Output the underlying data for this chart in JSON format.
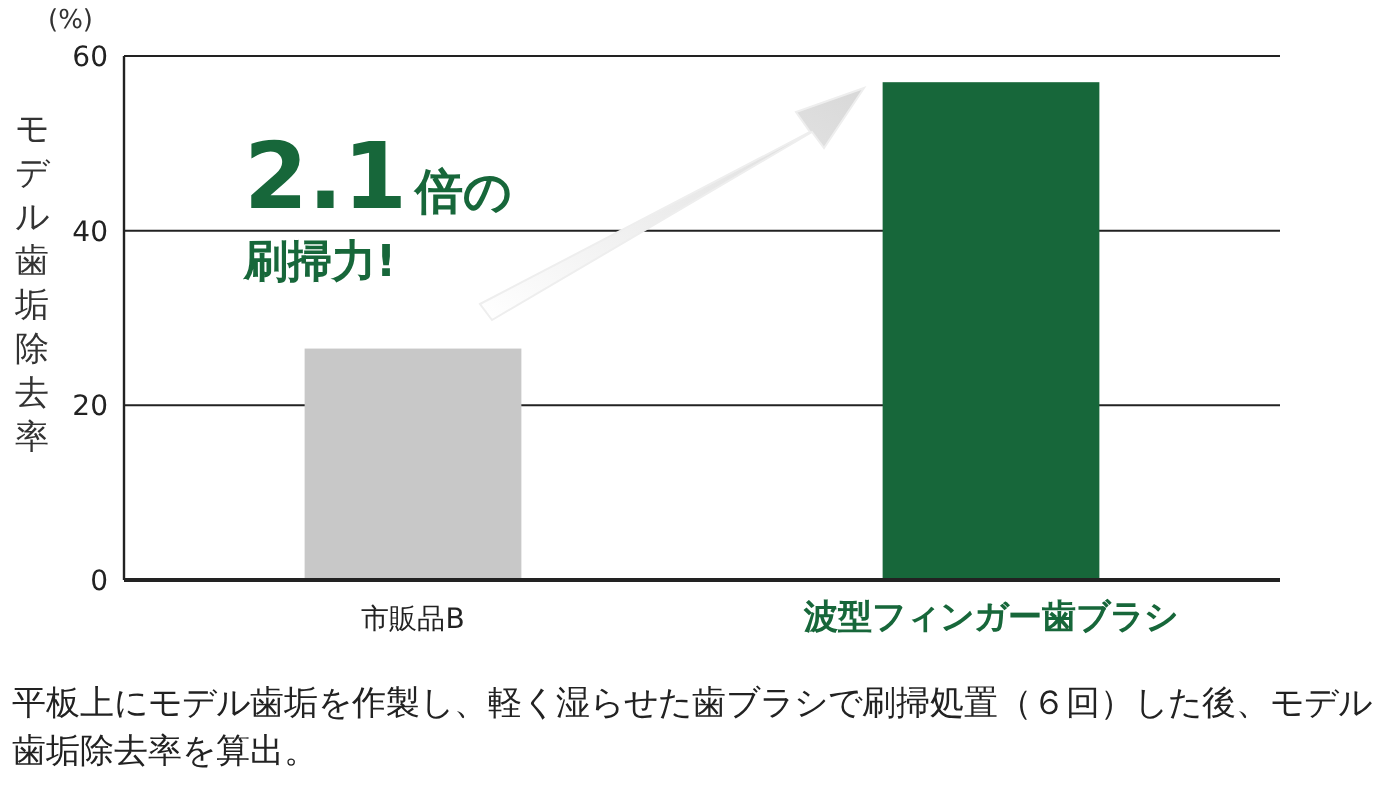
{
  "chart_data": {
    "type": "bar",
    "ylabel": "モデル歯垢除去率",
    "y2label": "(%)",
    "categories": [
      "市販品B",
      "波型フィンガー歯ブラシ"
    ],
    "values": [
      26.5,
      57
    ],
    "colors": [
      "#c8c8c8",
      "#17673a"
    ],
    "ylim": [
      0,
      60
    ],
    "yticks": [
      0,
      20,
      40,
      60
    ],
    "grid": "y",
    "annotations": [
      "2.1倍の",
      "刷掃力!",
      "平板上にモデル歯垢を作製し、軽く湿らせた歯ブラシで刷掃処置（６回）した後、モデル歯垢除去率を算出。"
    ]
  }
}
